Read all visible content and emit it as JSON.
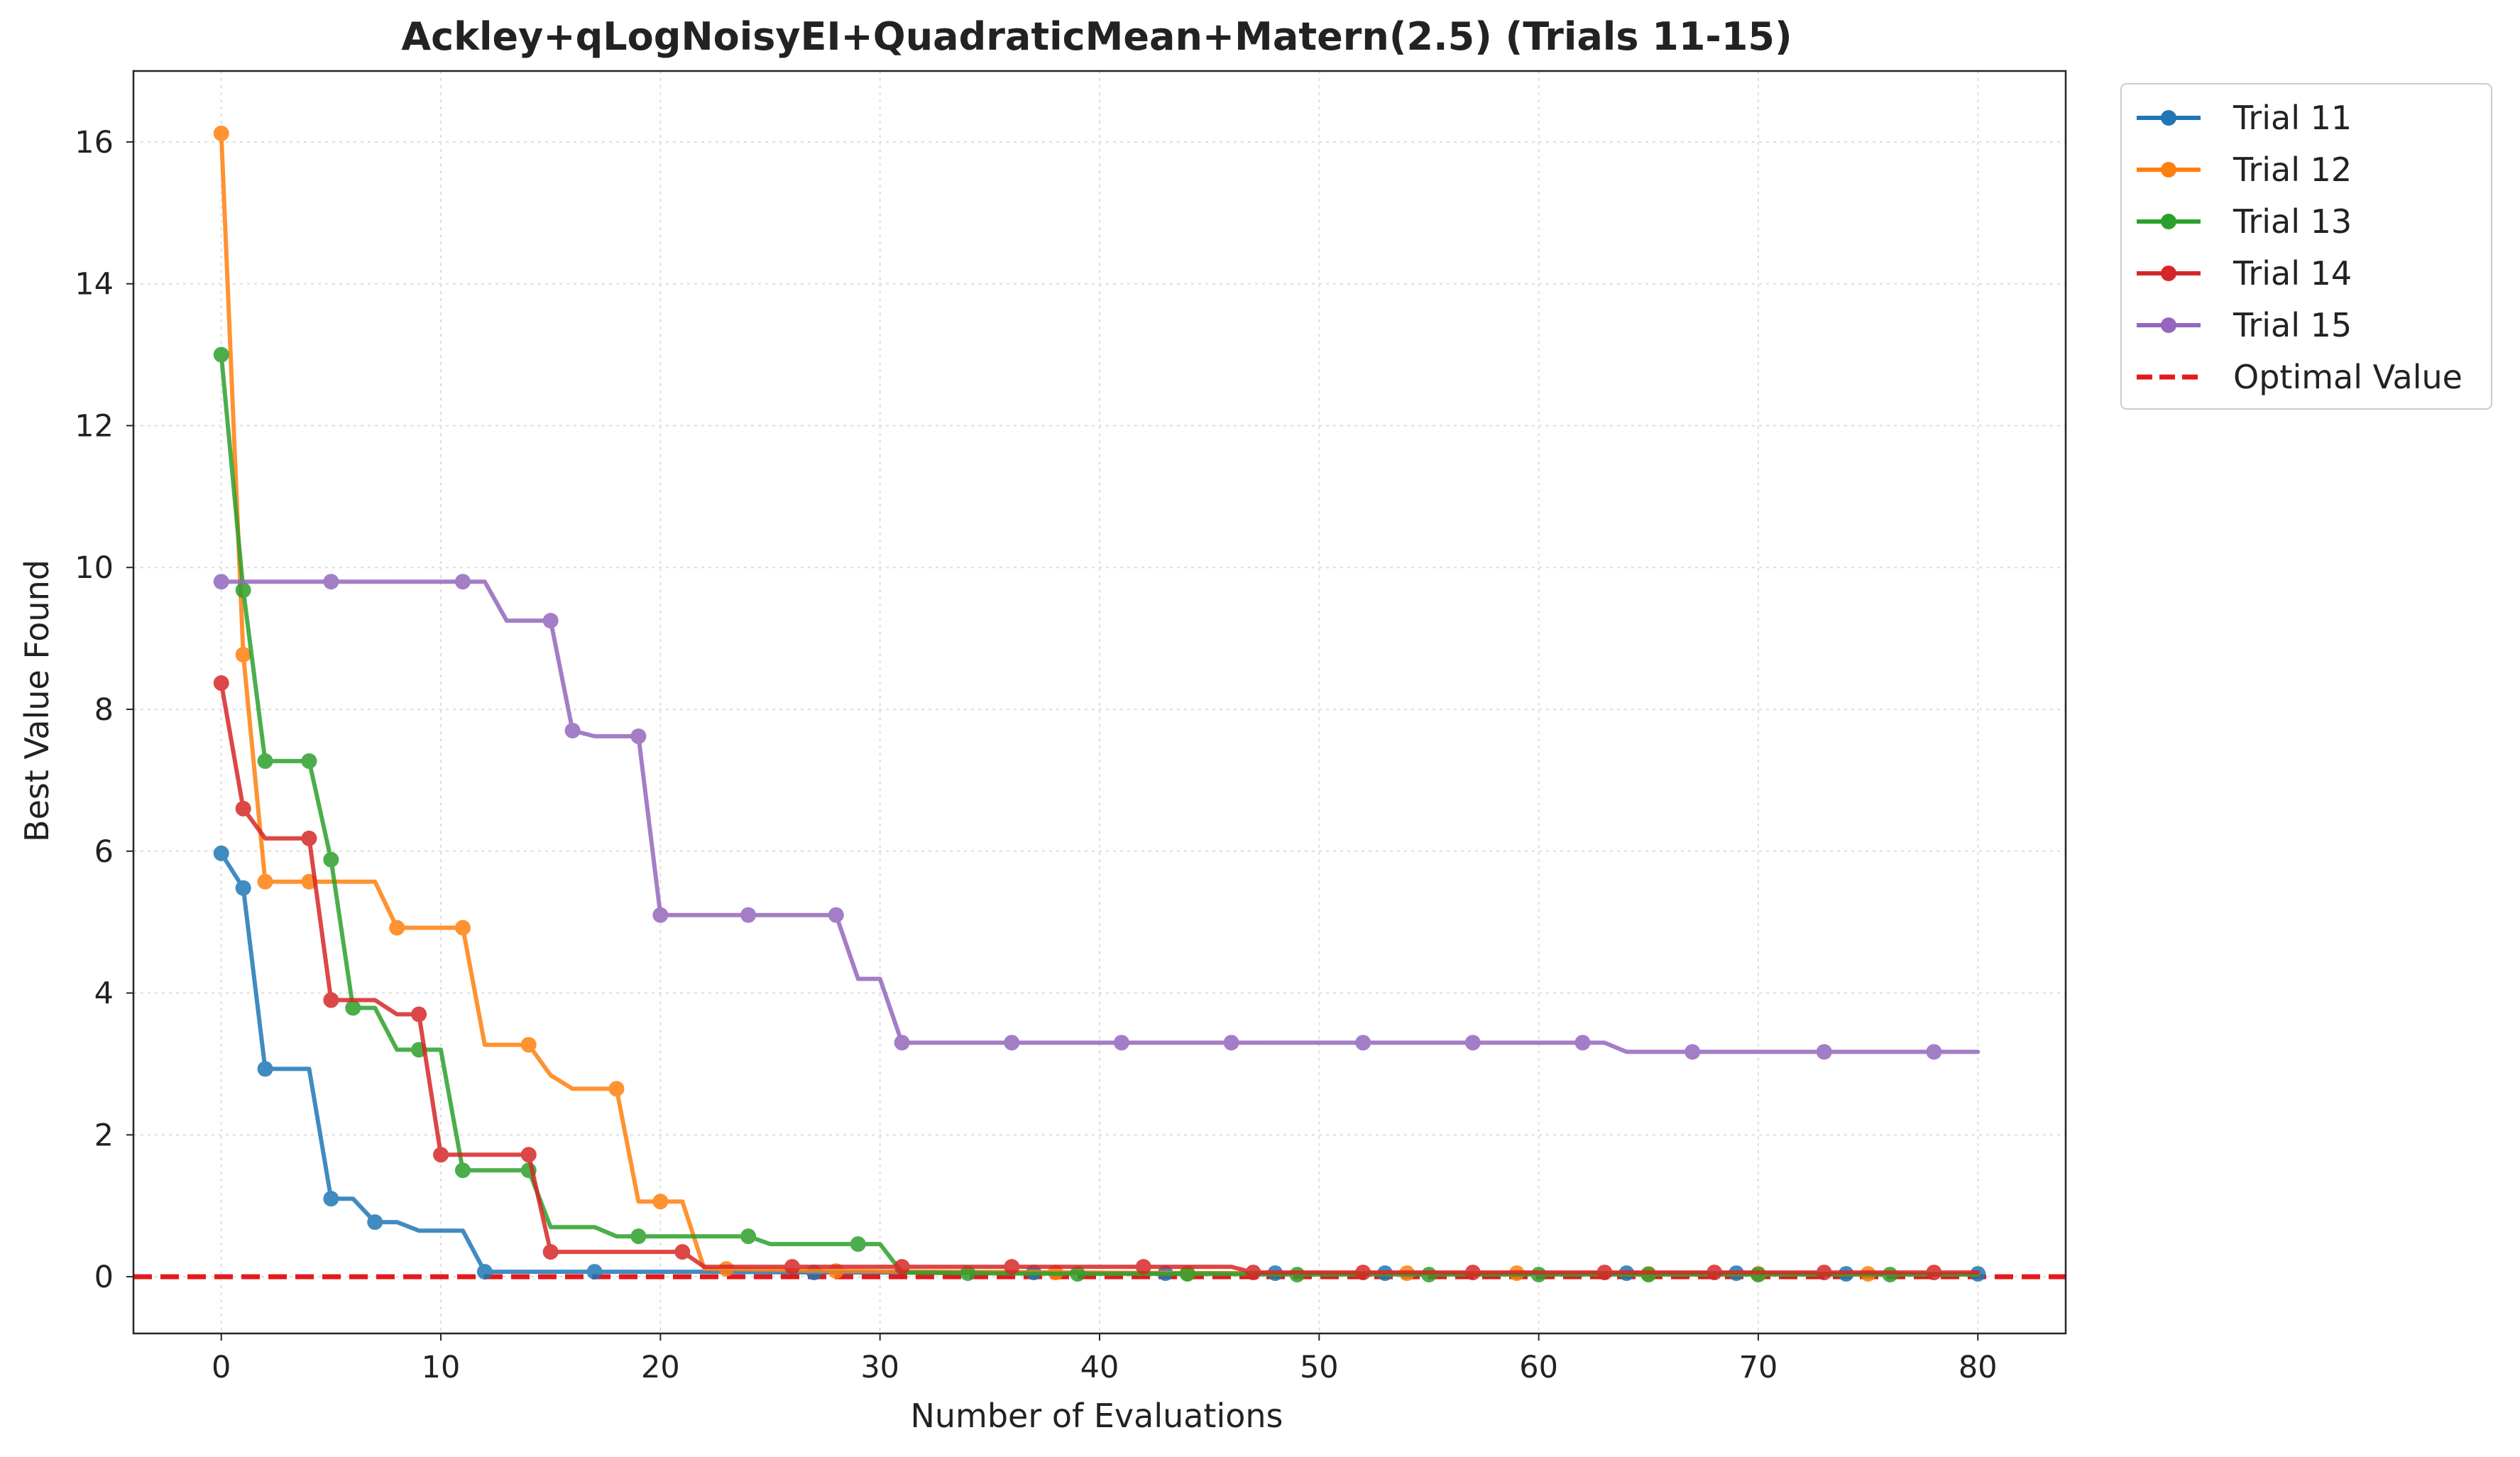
{
  "chart_data": {
    "type": "line",
    "title": "Ackley+qLogNoisyEI+QuadraticMean+Matern(2.5) (Trials 11-15)",
    "xlabel": "Number of Evaluations",
    "ylabel": "Best Value Found",
    "xlim": [
      -4,
      84
    ],
    "ylim": [
      -0.8,
      17
    ],
    "xticks": [
      0,
      10,
      20,
      30,
      40,
      50,
      60,
      70,
      80
    ],
    "yticks": [
      0,
      2,
      4,
      6,
      8,
      10,
      12,
      14,
      16
    ],
    "xtick_labels": [
      "0",
      "10",
      "20",
      "30",
      "40",
      "50",
      "60",
      "70",
      "80"
    ],
    "ytick_labels": [
      "0",
      "2",
      "4",
      "6",
      "8",
      "10",
      "12",
      "14",
      "16"
    ],
    "grid": true,
    "legend_position": "outside-top-right",
    "series": [
      {
        "name": "Trial 11",
        "color": "#1f77b4",
        "x": [
          0,
          1,
          2,
          3,
          4,
          5,
          6,
          7,
          8,
          9,
          10,
          11,
          12,
          13,
          14,
          15,
          16,
          17,
          18,
          19,
          20,
          21,
          22,
          27,
          37,
          43,
          48,
          53,
          64,
          69,
          74,
          80
        ],
        "y": [
          5.97,
          5.48,
          2.93,
          2.93,
          2.93,
          1.1,
          1.1,
          0.77,
          0.77,
          0.65,
          0.65,
          0.65,
          0.07,
          0.07,
          0.07,
          0.07,
          0.07,
          0.07,
          0.07,
          0.07,
          0.07,
          0.07,
          0.07,
          0.06,
          0.06,
          0.05,
          0.05,
          0.05,
          0.05,
          0.05,
          0.04,
          0.04
        ],
        "markers": [
          0,
          1,
          2,
          5,
          7,
          12,
          17,
          27,
          37,
          43,
          48,
          53,
          64,
          69,
          74,
          80
        ]
      },
      {
        "name": "Trial 12",
        "color": "#ff7f0e",
        "x": [
          0,
          1,
          2,
          3,
          4,
          5,
          6,
          7,
          8,
          9,
          10,
          11,
          12,
          13,
          14,
          15,
          16,
          17,
          18,
          19,
          20,
          21,
          22,
          23,
          28,
          38,
          44,
          54,
          59,
          65,
          70,
          75,
          80
        ],
        "y": [
          16.12,
          8.77,
          5.57,
          5.57,
          5.57,
          5.57,
          5.57,
          5.57,
          4.92,
          4.92,
          4.92,
          4.92,
          3.27,
          3.27,
          3.27,
          2.84,
          2.65,
          2.65,
          2.65,
          1.06,
          1.06,
          1.06,
          0.11,
          0.11,
          0.08,
          0.06,
          0.05,
          0.05,
          0.05,
          0.04,
          0.04,
          0.04,
          0.04
        ],
        "markers": [
          0,
          1,
          2,
          4,
          8,
          11,
          14,
          18,
          20,
          23,
          28,
          38,
          44,
          54,
          59,
          65,
          70,
          75
        ]
      },
      {
        "name": "Trial 13",
        "color": "#2ca02c",
        "x": [
          0,
          1,
          2,
          3,
          4,
          5,
          6,
          7,
          8,
          9,
          10,
          11,
          12,
          13,
          14,
          15,
          16,
          17,
          18,
          19,
          20,
          21,
          22,
          23,
          24,
          25,
          26,
          27,
          28,
          29,
          30,
          31,
          34,
          39,
          44,
          49,
          55,
          60,
          65,
          70,
          76,
          80
        ],
        "y": [
          13.0,
          9.68,
          7.27,
          7.27,
          7.27,
          5.88,
          3.79,
          3.79,
          3.2,
          3.2,
          3.2,
          1.5,
          1.5,
          1.5,
          1.5,
          0.7,
          0.7,
          0.7,
          0.57,
          0.57,
          0.57,
          0.57,
          0.57,
          0.57,
          0.57,
          0.46,
          0.46,
          0.46,
          0.46,
          0.46,
          0.46,
          0.06,
          0.05,
          0.04,
          0.04,
          0.03,
          0.03,
          0.03,
          0.03,
          0.03,
          0.03,
          0.03
        ],
        "markers": [
          0,
          1,
          2,
          4,
          5,
          6,
          9,
          11,
          14,
          19,
          24,
          29,
          34,
          39,
          44,
          49,
          55,
          60,
          65,
          70,
          76
        ]
      },
      {
        "name": "Trial 14",
        "color": "#d62728",
        "x": [
          0,
          1,
          2,
          3,
          4,
          5,
          6,
          7,
          8,
          9,
          10,
          11,
          12,
          13,
          14,
          15,
          16,
          17,
          18,
          19,
          20,
          21,
          22,
          26,
          31,
          36,
          42,
          46,
          47,
          52,
          57,
          63,
          68,
          73,
          78,
          80
        ],
        "y": [
          8.37,
          6.6,
          6.18,
          6.18,
          6.18,
          3.9,
          3.9,
          3.9,
          3.7,
          3.7,
          1.72,
          1.72,
          1.72,
          1.72,
          1.72,
          0.35,
          0.35,
          0.35,
          0.35,
          0.35,
          0.35,
          0.35,
          0.14,
          0.14,
          0.14,
          0.14,
          0.14,
          0.14,
          0.06,
          0.06,
          0.06,
          0.06,
          0.06,
          0.06,
          0.06,
          0.06
        ],
        "markers": [
          0,
          1,
          4,
          5,
          9,
          10,
          14,
          15,
          21,
          26,
          31,
          36,
          42,
          47,
          52,
          57,
          63,
          68,
          73,
          78
        ]
      },
      {
        "name": "Trial 15",
        "color": "#9467bd",
        "x": [
          0,
          1,
          2,
          3,
          4,
          5,
          6,
          7,
          8,
          9,
          10,
          11,
          12,
          13,
          14,
          15,
          16,
          17,
          18,
          19,
          20,
          21,
          22,
          23,
          24,
          25,
          26,
          27,
          28,
          29,
          30,
          31,
          36,
          41,
          46,
          52,
          57,
          62,
          63,
          64,
          67,
          73,
          78,
          80
        ],
        "y": [
          9.8,
          9.8,
          9.8,
          9.8,
          9.8,
          9.8,
          9.8,
          9.8,
          9.8,
          9.8,
          9.8,
          9.8,
          9.8,
          9.25,
          9.25,
          9.25,
          7.7,
          7.62,
          7.62,
          7.62,
          5.1,
          5.1,
          5.1,
          5.1,
          5.1,
          5.1,
          5.1,
          5.1,
          5.1,
          4.2,
          4.2,
          3.3,
          3.3,
          3.3,
          3.3,
          3.3,
          3.3,
          3.3,
          3.3,
          3.17,
          3.17,
          3.17,
          3.17,
          3.17
        ],
        "markers": [
          0,
          5,
          11,
          15,
          16,
          19,
          20,
          24,
          28,
          31,
          36,
          41,
          46,
          52,
          57,
          62,
          67,
          73,
          78
        ]
      }
    ],
    "reference_line": {
      "name": "Optimal Value",
      "y": 0,
      "color": "#e31a1c",
      "style": "dashed"
    }
  }
}
